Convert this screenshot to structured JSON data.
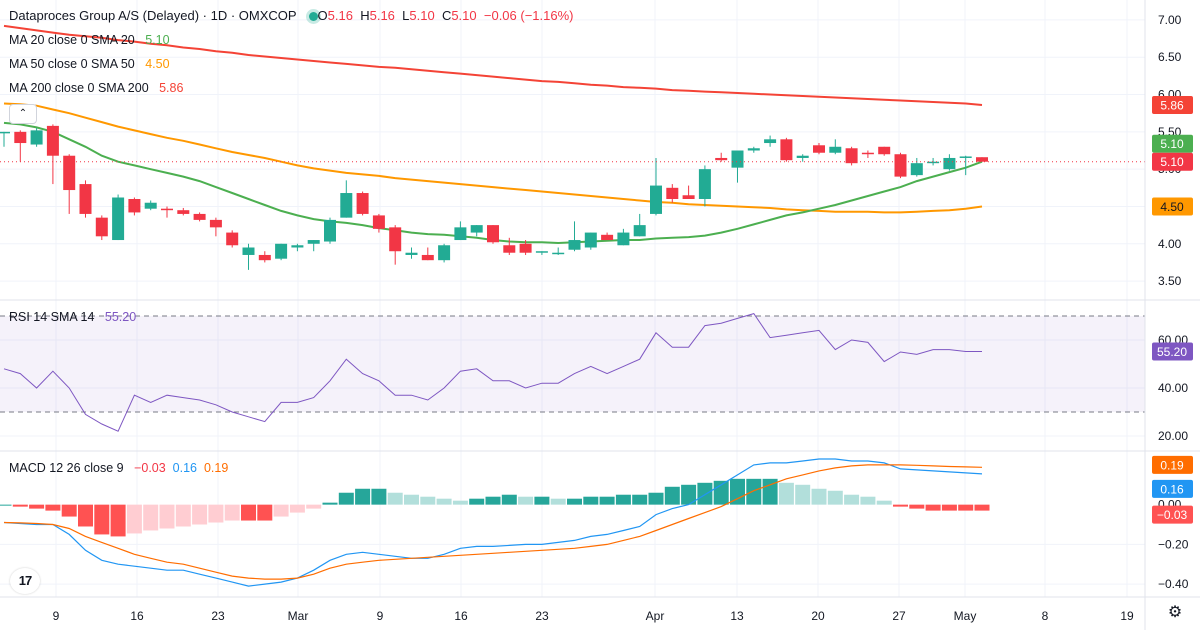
{
  "header": {
    "symbol": "Dataproces Group A/S (Delayed) · 1D · OMXCOP",
    "o_label": "O",
    "o": "5.16",
    "h_label": "H",
    "h": "5.16",
    "l_label": "L",
    "l": "5.10",
    "c_label": "C",
    "c": "5.10",
    "change": "−0.06 (−1.16%)"
  },
  "legend": {
    "ma20_label": "MA 20 close 0 SMA 20",
    "ma20_value": "5.10",
    "ma50_label": "MA 50 close 0 SMA 50",
    "ma50_value": "4.50",
    "ma200_label": "MA 200 close 0 SMA 200",
    "ma200_value": "5.86",
    "rsi_label": "RSI 14 SMA 14",
    "rsi_value": "55.20",
    "macd_label": "MACD 12 26 close 9",
    "macd_hist": "−0.03",
    "macd_line": "0.16",
    "macd_signal": "0.19"
  },
  "colors": {
    "up": "#22ab94",
    "down": "#f23645",
    "ma20": "#4caf50",
    "ma50": "#ff9800",
    "ma200": "#f44336",
    "rsi": "#7e57c2",
    "macd_line": "#2196f3",
    "macd_signal": "#ff6d00",
    "hist_up_strong": "#26a69a",
    "hist_up_weak": "#b2dfdb",
    "hist_down_strong": "#ff5252",
    "hist_down_weak": "#ffcdd2"
  },
  "icons": {
    "collapse": "chevron-up-icon",
    "logo": "tradingview-logo",
    "settings": "gear-icon"
  },
  "chart_data": [
    {
      "type": "candlestick",
      "title": "Dataproces Group A/S (Delayed) · 1D · OMXCOP",
      "ylim": [
        3.3,
        7.2
      ],
      "y_ticks": [
        "7.00",
        "6.50",
        "6.00",
        "5.50",
        "5.00",
        "4.50",
        "4.00",
        "3.50"
      ],
      "x_ticks": [
        "9",
        "16",
        "23",
        "Mar",
        "9",
        "16",
        "23",
        "Apr",
        "13",
        "20",
        "27",
        "May",
        "8",
        "19"
      ],
      "last_price_label": "5.10",
      "candles": [
        {
          "o": 5.48,
          "h": 5.5,
          "l": 5.3,
          "c": 5.5
        },
        {
          "o": 5.5,
          "h": 5.52,
          "l": 5.1,
          "c": 5.35
        },
        {
          "o": 5.33,
          "h": 5.55,
          "l": 5.3,
          "c": 5.52
        },
        {
          "o": 5.58,
          "h": 5.6,
          "l": 4.8,
          "c": 5.18
        },
        {
          "o": 5.18,
          "h": 5.2,
          "l": 4.4,
          "c": 4.72
        },
        {
          "o": 4.8,
          "h": 4.85,
          "l": 4.35,
          "c": 4.4
        },
        {
          "o": 4.35,
          "h": 4.38,
          "l": 4.05,
          "c": 4.1
        },
        {
          "o": 4.05,
          "h": 4.66,
          "l": 4.05,
          "c": 4.62
        },
        {
          "o": 4.6,
          "h": 4.62,
          "l": 4.38,
          "c": 4.42
        },
        {
          "o": 4.47,
          "h": 4.58,
          "l": 4.45,
          "c": 4.55
        },
        {
          "o": 4.47,
          "h": 4.5,
          "l": 4.35,
          "c": 4.45
        },
        {
          "o": 4.45,
          "h": 4.48,
          "l": 4.38,
          "c": 4.4
        },
        {
          "o": 4.4,
          "h": 4.42,
          "l": 4.3,
          "c": 4.32
        },
        {
          "o": 4.32,
          "h": 4.35,
          "l": 4.1,
          "c": 4.22
        },
        {
          "o": 4.15,
          "h": 4.18,
          "l": 3.95,
          "c": 3.98
        },
        {
          "o": 3.85,
          "h": 4.0,
          "l": 3.65,
          "c": 3.95
        },
        {
          "o": 3.85,
          "h": 3.9,
          "l": 3.75,
          "c": 3.78
        },
        {
          "o": 3.8,
          "h": 4.0,
          "l": 3.78,
          "c": 4.0
        },
        {
          "o": 3.95,
          "h": 4.0,
          "l": 3.9,
          "c": 3.98
        },
        {
          "o": 4.0,
          "h": 4.05,
          "l": 3.9,
          "c": 4.05
        },
        {
          "o": 4.03,
          "h": 4.35,
          "l": 4.0,
          "c": 4.32
        },
        {
          "o": 4.35,
          "h": 4.85,
          "l": 4.35,
          "c": 4.68
        },
        {
          "o": 4.68,
          "h": 4.7,
          "l": 4.38,
          "c": 4.4
        },
        {
          "o": 4.38,
          "h": 4.4,
          "l": 4.15,
          "c": 4.2
        },
        {
          "o": 4.22,
          "h": 4.25,
          "l": 3.72,
          "c": 3.9
        },
        {
          "o": 3.85,
          "h": 3.95,
          "l": 3.8,
          "c": 3.88
        },
        {
          "o": 3.85,
          "h": 3.95,
          "l": 3.78,
          "c": 3.78
        },
        {
          "o": 3.78,
          "h": 4.0,
          "l": 3.75,
          "c": 3.98
        },
        {
          "o": 4.05,
          "h": 4.3,
          "l": 4.05,
          "c": 4.22
        },
        {
          "o": 4.15,
          "h": 4.25,
          "l": 4.1,
          "c": 4.25
        },
        {
          "o": 4.25,
          "h": 4.25,
          "l": 4.0,
          "c": 4.02
        },
        {
          "o": 3.98,
          "h": 4.08,
          "l": 3.85,
          "c": 3.88
        },
        {
          "o": 4.0,
          "h": 4.05,
          "l": 3.85,
          "c": 3.88
        },
        {
          "o": 3.88,
          "h": 3.9,
          "l": 3.85,
          "c": 3.9
        },
        {
          "o": 3.86,
          "h": 3.95,
          "l": 3.85,
          "c": 3.88
        },
        {
          "o": 3.92,
          "h": 4.3,
          "l": 3.9,
          "c": 4.05
        },
        {
          "o": 3.95,
          "h": 4.15,
          "l": 3.92,
          "c": 4.15
        },
        {
          "o": 4.12,
          "h": 4.15,
          "l": 4.05,
          "c": 4.05
        },
        {
          "o": 3.98,
          "h": 4.2,
          "l": 3.98,
          "c": 4.15
        },
        {
          "o": 4.1,
          "h": 4.4,
          "l": 4.1,
          "c": 4.25
        },
        {
          "o": 4.4,
          "h": 5.15,
          "l": 4.38,
          "c": 4.78
        },
        {
          "o": 4.75,
          "h": 4.8,
          "l": 4.55,
          "c": 4.6
        },
        {
          "o": 4.65,
          "h": 4.78,
          "l": 4.6,
          "c": 4.6
        },
        {
          "o": 4.6,
          "h": 5.05,
          "l": 4.5,
          "c": 5.0
        },
        {
          "o": 5.15,
          "h": 5.22,
          "l": 5.1,
          "c": 5.12
        },
        {
          "o": 5.02,
          "h": 5.25,
          "l": 4.82,
          "c": 5.25
        },
        {
          "o": 5.25,
          "h": 5.3,
          "l": 5.22,
          "c": 5.28
        },
        {
          "o": 5.35,
          "h": 5.45,
          "l": 5.3,
          "c": 5.4
        },
        {
          "o": 5.4,
          "h": 5.42,
          "l": 5.1,
          "c": 5.12
        },
        {
          "o": 5.15,
          "h": 5.2,
          "l": 5.1,
          "c": 5.18
        },
        {
          "o": 5.32,
          "h": 5.35,
          "l": 5.2,
          "c": 5.22
        },
        {
          "o": 5.22,
          "h": 5.4,
          "l": 5.2,
          "c": 5.3
        },
        {
          "o": 5.28,
          "h": 5.3,
          "l": 5.05,
          "c": 5.08
        },
        {
          "o": 5.22,
          "h": 5.25,
          "l": 5.15,
          "c": 5.2
        },
        {
          "o": 5.3,
          "h": 5.3,
          "l": 5.18,
          "c": 5.2
        },
        {
          "o": 5.2,
          "h": 5.22,
          "l": 4.88,
          "c": 4.9
        },
        {
          "o": 4.92,
          "h": 5.15,
          "l": 4.9,
          "c": 5.08
        },
        {
          "o": 5.08,
          "h": 5.15,
          "l": 5.05,
          "c": 5.1
        },
        {
          "o": 5.0,
          "h": 5.2,
          "l": 4.98,
          "c": 5.15
        },
        {
          "o": 5.15,
          "h": 5.18,
          "l": 4.92,
          "c": 5.17
        },
        {
          "o": 5.16,
          "h": 5.16,
          "l": 5.1,
          "c": 5.1
        }
      ],
      "series": [
        {
          "name": "MA 20 close 0 SMA 20",
          "values": [
            5.62,
            5.6,
            5.56,
            5.5,
            5.4,
            5.3,
            5.18,
            5.1,
            5.05,
            5.0,
            4.95,
            4.9,
            4.84,
            4.76,
            4.68,
            4.6,
            4.52,
            4.44,
            4.38,
            4.33,
            4.3,
            4.28,
            4.25,
            4.21,
            4.18,
            4.15,
            4.13,
            4.12,
            4.1,
            4.08,
            4.05,
            4.03,
            4.02,
            4.02,
            4.01,
            4.02,
            4.03,
            4.04,
            4.05,
            4.05,
            4.07,
            4.08,
            4.09,
            4.11,
            4.15,
            4.2,
            4.26,
            4.32,
            4.38,
            4.42,
            4.47,
            4.52,
            4.58,
            4.64,
            4.7,
            4.76,
            4.84,
            4.9,
            4.96,
            5.02,
            5.1
          ]
        },
        {
          "name": "MA 50 close 0 SMA 50",
          "values": [
            5.88,
            5.87,
            5.85,
            5.8,
            5.75,
            5.69,
            5.63,
            5.57,
            5.52,
            5.47,
            5.42,
            5.38,
            5.33,
            5.28,
            5.23,
            5.19,
            5.15,
            5.1,
            5.05,
            5.01,
            4.98,
            4.95,
            4.93,
            4.91,
            4.88,
            4.86,
            4.84,
            4.82,
            4.8,
            4.78,
            4.76,
            4.74,
            4.72,
            4.7,
            4.68,
            4.66,
            4.64,
            4.62,
            4.6,
            4.58,
            4.56,
            4.55,
            4.53,
            4.52,
            4.51,
            4.5,
            4.49,
            4.48,
            4.46,
            4.45,
            4.44,
            4.43,
            4.43,
            4.43,
            4.42,
            4.42,
            4.43,
            4.44,
            4.45,
            4.47,
            4.5
          ]
        },
        {
          "name": "MA 200 close 0 SMA 200",
          "values": [
            6.92,
            6.89,
            6.86,
            6.83,
            6.8,
            6.78,
            6.76,
            6.73,
            6.71,
            6.68,
            6.66,
            6.63,
            6.61,
            6.58,
            6.56,
            6.53,
            6.51,
            6.49,
            6.47,
            6.45,
            6.43,
            6.41,
            6.39,
            6.37,
            6.36,
            6.34,
            6.32,
            6.3,
            6.28,
            6.26,
            6.24,
            6.22,
            6.2,
            6.18,
            6.17,
            6.15,
            6.13,
            6.12,
            6.1,
            6.09,
            6.08,
            6.06,
            6.05,
            6.04,
            6.03,
            6.02,
            6.01,
            6.0,
            5.99,
            5.98,
            5.97,
            5.96,
            5.95,
            5.94,
            5.93,
            5.92,
            5.91,
            5.9,
            5.89,
            5.88,
            5.86
          ]
        }
      ]
    },
    {
      "type": "line",
      "title": "RSI 14 SMA 14",
      "ylim": [
        15,
        75
      ],
      "y_ticks": [
        "60.00",
        "40.00",
        "20.00"
      ],
      "bands": [
        70,
        30
      ],
      "last_value_label": "55.20",
      "series": [
        {
          "name": "RSI 14 SMA 14",
          "values": [
            48,
            46,
            40,
            47,
            40,
            29,
            25,
            22,
            37,
            34,
            37,
            36,
            35,
            33,
            30,
            28,
            26,
            34,
            34,
            36,
            43,
            52,
            46,
            43,
            37,
            37,
            35,
            40,
            47,
            48,
            43,
            43,
            40,
            42,
            42,
            46,
            49,
            46,
            49,
            52,
            63,
            57,
            57,
            66,
            67,
            69,
            71,
            61,
            62,
            63,
            64,
            56,
            60,
            59,
            51,
            55,
            54,
            56,
            56,
            55.2,
            55.2
          ]
        }
      ]
    },
    {
      "type": "bar",
      "title": "MACD 12 26 close 9",
      "ylim": [
        -0.46,
        0.25
      ],
      "y_ticks": [
        "−0.20",
        "−0.40"
      ],
      "zero_label": "0.00",
      "last_value_labels": {
        "signal": "0.19",
        "macd": "0.16",
        "hist": "−0.03"
      },
      "series": [
        {
          "name": "histogram",
          "values": [
            0.0,
            -0.01,
            -0.02,
            -0.03,
            -0.06,
            -0.11,
            -0.15,
            -0.16,
            -0.145,
            -0.13,
            -0.12,
            -0.11,
            -0.1,
            -0.09,
            -0.08,
            -0.08,
            -0.08,
            -0.06,
            -0.04,
            -0.02,
            0.01,
            0.06,
            0.08,
            0.08,
            0.06,
            0.05,
            0.04,
            0.03,
            0.02,
            0.03,
            0.04,
            0.05,
            0.04,
            0.04,
            0.03,
            0.03,
            0.04,
            0.04,
            0.05,
            0.05,
            0.06,
            0.09,
            0.1,
            0.11,
            0.12,
            0.13,
            0.13,
            0.13,
            0.11,
            0.1,
            0.08,
            0.07,
            0.05,
            0.04,
            0.02,
            -0.01,
            -0.02,
            -0.03,
            -0.03,
            -0.03,
            -0.03
          ]
        },
        {
          "name": "macd",
          "values": [
            -0.09,
            -0.095,
            -0.1,
            -0.1,
            -0.15,
            -0.23,
            -0.28,
            -0.3,
            -0.31,
            -0.32,
            -0.33,
            -0.33,
            -0.35,
            -0.37,
            -0.39,
            -0.41,
            -0.4,
            -0.39,
            -0.37,
            -0.33,
            -0.28,
            -0.25,
            -0.24,
            -0.25,
            -0.26,
            -0.27,
            -0.27,
            -0.25,
            -0.22,
            -0.21,
            -0.21,
            -0.205,
            -0.2,
            -0.2,
            -0.19,
            -0.18,
            -0.16,
            -0.15,
            -0.13,
            -0.11,
            -0.05,
            -0.02,
            0.0,
            0.05,
            0.1,
            0.15,
            0.2,
            0.21,
            0.21,
            0.22,
            0.23,
            0.23,
            0.22,
            0.22,
            0.21,
            0.18,
            0.175,
            0.17,
            0.165,
            0.16,
            0.155
          ]
        },
        {
          "name": "signal",
          "values": [
            -0.09,
            -0.092,
            -0.095,
            -0.1,
            -0.12,
            -0.16,
            -0.19,
            -0.22,
            -0.25,
            -0.27,
            -0.29,
            -0.3,
            -0.32,
            -0.34,
            -0.36,
            -0.37,
            -0.375,
            -0.375,
            -0.37,
            -0.35,
            -0.32,
            -0.3,
            -0.29,
            -0.28,
            -0.275,
            -0.27,
            -0.265,
            -0.26,
            -0.255,
            -0.25,
            -0.245,
            -0.24,
            -0.235,
            -0.23,
            -0.225,
            -0.22,
            -0.21,
            -0.2,
            -0.18,
            -0.16,
            -0.13,
            -0.1,
            -0.07,
            -0.04,
            -0.01,
            0.03,
            0.07,
            0.1,
            0.13,
            0.15,
            0.17,
            0.185,
            0.195,
            0.2,
            0.2,
            0.2,
            0.198,
            0.195,
            0.192,
            0.19,
            0.188
          ]
        }
      ]
    }
  ]
}
